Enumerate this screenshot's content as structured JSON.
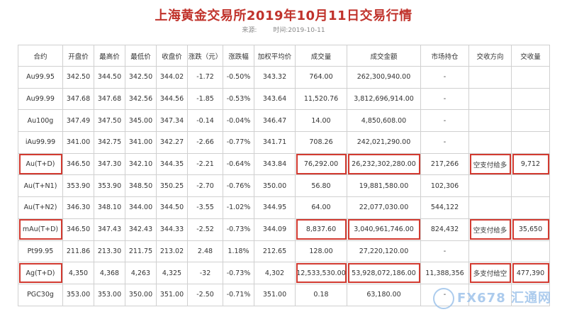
{
  "title": "上海黄金交易所2019年10月11日交易行情",
  "meta": {
    "source_label": "来源:",
    "time_label": "时间:",
    "time_value": "2019-10-11"
  },
  "headers": [
    "合约",
    "开盘价",
    "最高价",
    "最低价",
    "收盘价",
    "涨跌（元）",
    "涨跌幅",
    "加权平均价",
    "成交量",
    "成交金额",
    "市场持仓",
    "交收方向",
    "交收量"
  ],
  "rows": [
    [
      "Au99.95",
      "342.50",
      "344.50",
      "342.50",
      "344.02",
      "-1.72",
      "-0.50%",
      "343.32",
      "764.00",
      "262,300,940.00",
      "-",
      "",
      ""
    ],
    [
      "Au99.99",
      "347.68",
      "347.68",
      "342.56",
      "344.56",
      "-1.85",
      "-0.53%",
      "343.64",
      "11,520.76",
      "3,812,696,914.00",
      "-",
      "",
      ""
    ],
    [
      "Au100g",
      "347.49",
      "347.50",
      "345.00",
      "347.34",
      "-0.14",
      "-0.04%",
      "346.47",
      "14.00",
      "4,850,608.00",
      "-",
      "",
      ""
    ],
    [
      "iAu99.99",
      "341.00",
      "342.75",
      "341.00",
      "342.27",
      "-2.66",
      "-0.77%",
      "341.71",
      "708.26",
      "242,021,290.00",
      "-",
      "",
      ""
    ],
    [
      "Au(T+D)",
      "346.50",
      "347.30",
      "342.10",
      "344.35",
      "-2.21",
      "-0.64%",
      "343.84",
      "76,292.00",
      "26,232,302,280.00",
      "217,266",
      "空支付给多",
      "9,712"
    ],
    [
      "Au(T+N1)",
      "353.90",
      "353.90",
      "348.50",
      "350.25",
      "-2.70",
      "-0.76%",
      "350.00",
      "56.80",
      "19,881,580.00",
      "102,306",
      "",
      ""
    ],
    [
      "Au(T+N2)",
      "346.30",
      "348.10",
      "344.00",
      "344.50",
      "-3.55",
      "-1.02%",
      "344.95",
      "64.00",
      "22,077,030.00",
      "544,122",
      "",
      ""
    ],
    [
      "mAu(T+D)",
      "346.50",
      "347.43",
      "342.43",
      "344.33",
      "-2.52",
      "-0.73%",
      "344.09",
      "8,837.60",
      "3,040,961,746.00",
      "824,432",
      "空支付给多",
      "35,650"
    ],
    [
      "Pt99.95",
      "211.86",
      "213.30",
      "211.75",
      "213.02",
      "2.48",
      "1.18%",
      "212.65",
      "128.00",
      "27,220,120.00",
      "-",
      "",
      ""
    ],
    [
      "Ag(T+D)",
      "4,350",
      "4,368",
      "4,263",
      "4,325",
      "-32",
      "-0.73%",
      "4,302",
      "12,533,530.00",
      "53,928,072,186.00",
      "11,388,356",
      "多支付给空",
      "477,390"
    ],
    [
      "PGC30g",
      "353.00",
      "353.00",
      "350.00",
      "351.00",
      "-2.50",
      "-0.71%",
      "351.00",
      "0.18",
      "63,180.00",
      "-",
      "",
      ""
    ]
  ],
  "highlights": [
    [
      4,
      0
    ],
    [
      4,
      8
    ],
    [
      4,
      9
    ],
    [
      4,
      11
    ],
    [
      4,
      12
    ],
    [
      7,
      0
    ],
    [
      7,
      8
    ],
    [
      7,
      9
    ],
    [
      7,
      11
    ],
    [
      7,
      12
    ],
    [
      9,
      0
    ],
    [
      9,
      8
    ],
    [
      9,
      9
    ],
    [
      9,
      11
    ],
    [
      9,
      12
    ]
  ],
  "watermark": "FX678 汇通网",
  "highlight_color": "#d23a30",
  "title_color": "#c0322b"
}
